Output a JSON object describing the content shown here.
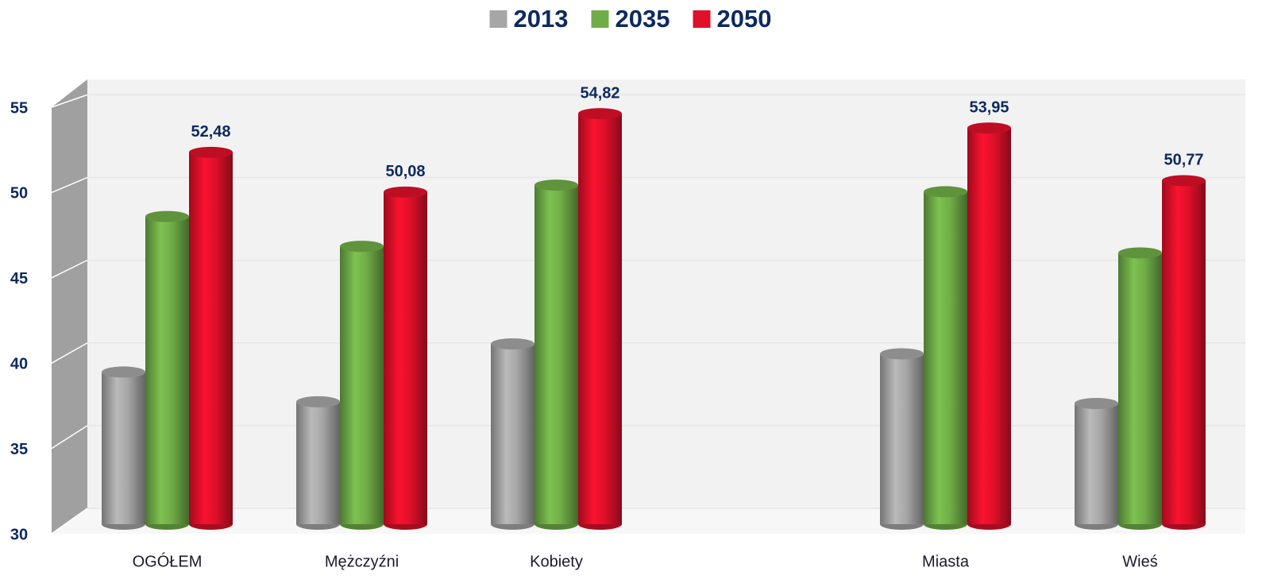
{
  "chart_data": {
    "type": "bar3d",
    "categories": [
      "OGÓŁEM",
      "Mężczyźni",
      "Kobiety",
      null,
      "Miasta",
      "Wieś"
    ],
    "series": [
      {
        "name": "2013",
        "color": "#a6a6a6",
        "values": [
          39.2,
          37.4,
          40.9,
          null,
          40.3,
          37.3
        ]
      },
      {
        "name": "2035",
        "color": "#70ad47",
        "values": [
          48.6,
          46.8,
          50.5,
          null,
          50.1,
          46.4
        ]
      },
      {
        "name": "2050",
        "color": "#e0102a",
        "values": [
          52.48,
          50.08,
          54.82,
          null,
          53.95,
          50.77
        ],
        "value_labels": [
          "52,48",
          "50,08",
          "54,82",
          null,
          "53,95",
          "50,77"
        ]
      }
    ],
    "ylim": [
      30,
      55
    ],
    "yticks": [
      30,
      35,
      40,
      45,
      50,
      55
    ],
    "grid": true,
    "legend": "top"
  }
}
